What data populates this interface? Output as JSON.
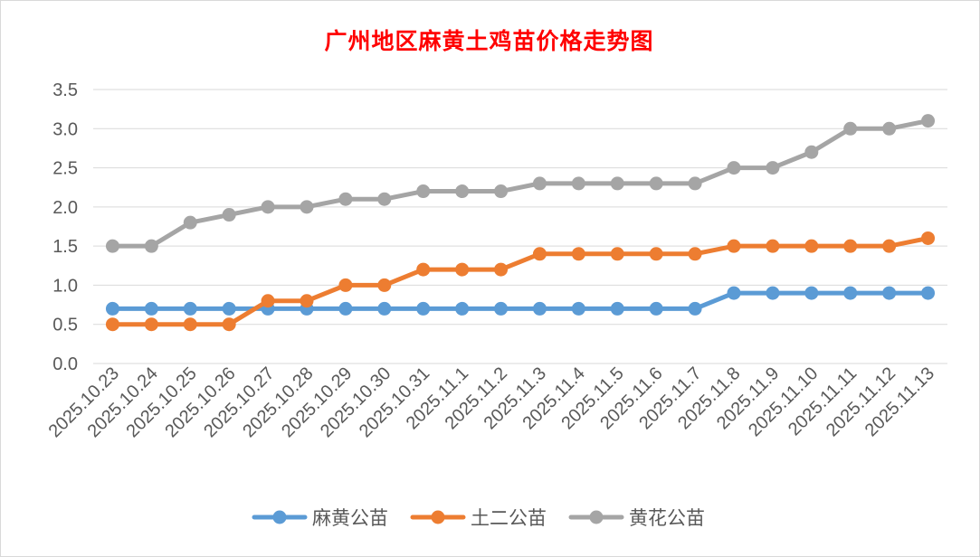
{
  "chart_data": {
    "type": "line",
    "title": "广州地区麻黄土鸡苗价格走势图",
    "xlabel": "",
    "ylabel": "",
    "ylim": [
      0,
      3.5
    ],
    "yticks": [
      "0.0",
      "0.5",
      "1.0",
      "1.5",
      "2.0",
      "2.5",
      "3.0",
      "3.5"
    ],
    "grid": "horizontal",
    "legend_position": "bottom",
    "categories": [
      "2025.10.23",
      "2025.10.24",
      "2025.10.25",
      "2025.10.26",
      "2025.10.27",
      "2025.10.28",
      "2025.10.29",
      "2025.10.30",
      "2025.10.31",
      "2025.11.1",
      "2025.11.2",
      "2025.11.3",
      "2025.11.4",
      "2025.11.5",
      "2025.11.6",
      "2025.11.7",
      "2025.11.8",
      "2025.11.9",
      "2025.11.10",
      "2025.11.11",
      "2025.11.12",
      "2025.11.13"
    ],
    "series": [
      {
        "name": "麻黄公苗",
        "color": "#5b9bd5",
        "values": [
          0.7,
          0.7,
          0.7,
          0.7,
          0.7,
          0.7,
          0.7,
          0.7,
          0.7,
          0.7,
          0.7,
          0.7,
          0.7,
          0.7,
          0.7,
          0.7,
          0.9,
          0.9,
          0.9,
          0.9,
          0.9,
          0.9
        ]
      },
      {
        "name": "土二公苗",
        "color": "#ed7d31",
        "values": [
          0.5,
          0.5,
          0.5,
          0.5,
          0.8,
          0.8,
          1.0,
          1.0,
          1.2,
          1.2,
          1.2,
          1.4,
          1.4,
          1.4,
          1.4,
          1.4,
          1.5,
          1.5,
          1.5,
          1.5,
          1.5,
          1.6
        ]
      },
      {
        "name": "黄花公苗",
        "color": "#a5a5a5",
        "values": [
          1.5,
          1.5,
          1.8,
          1.9,
          2.0,
          2.0,
          2.1,
          2.1,
          2.2,
          2.2,
          2.2,
          2.3,
          2.3,
          2.3,
          2.3,
          2.3,
          2.5,
          2.5,
          2.7,
          3.0,
          3.0,
          3.1
        ]
      }
    ]
  }
}
